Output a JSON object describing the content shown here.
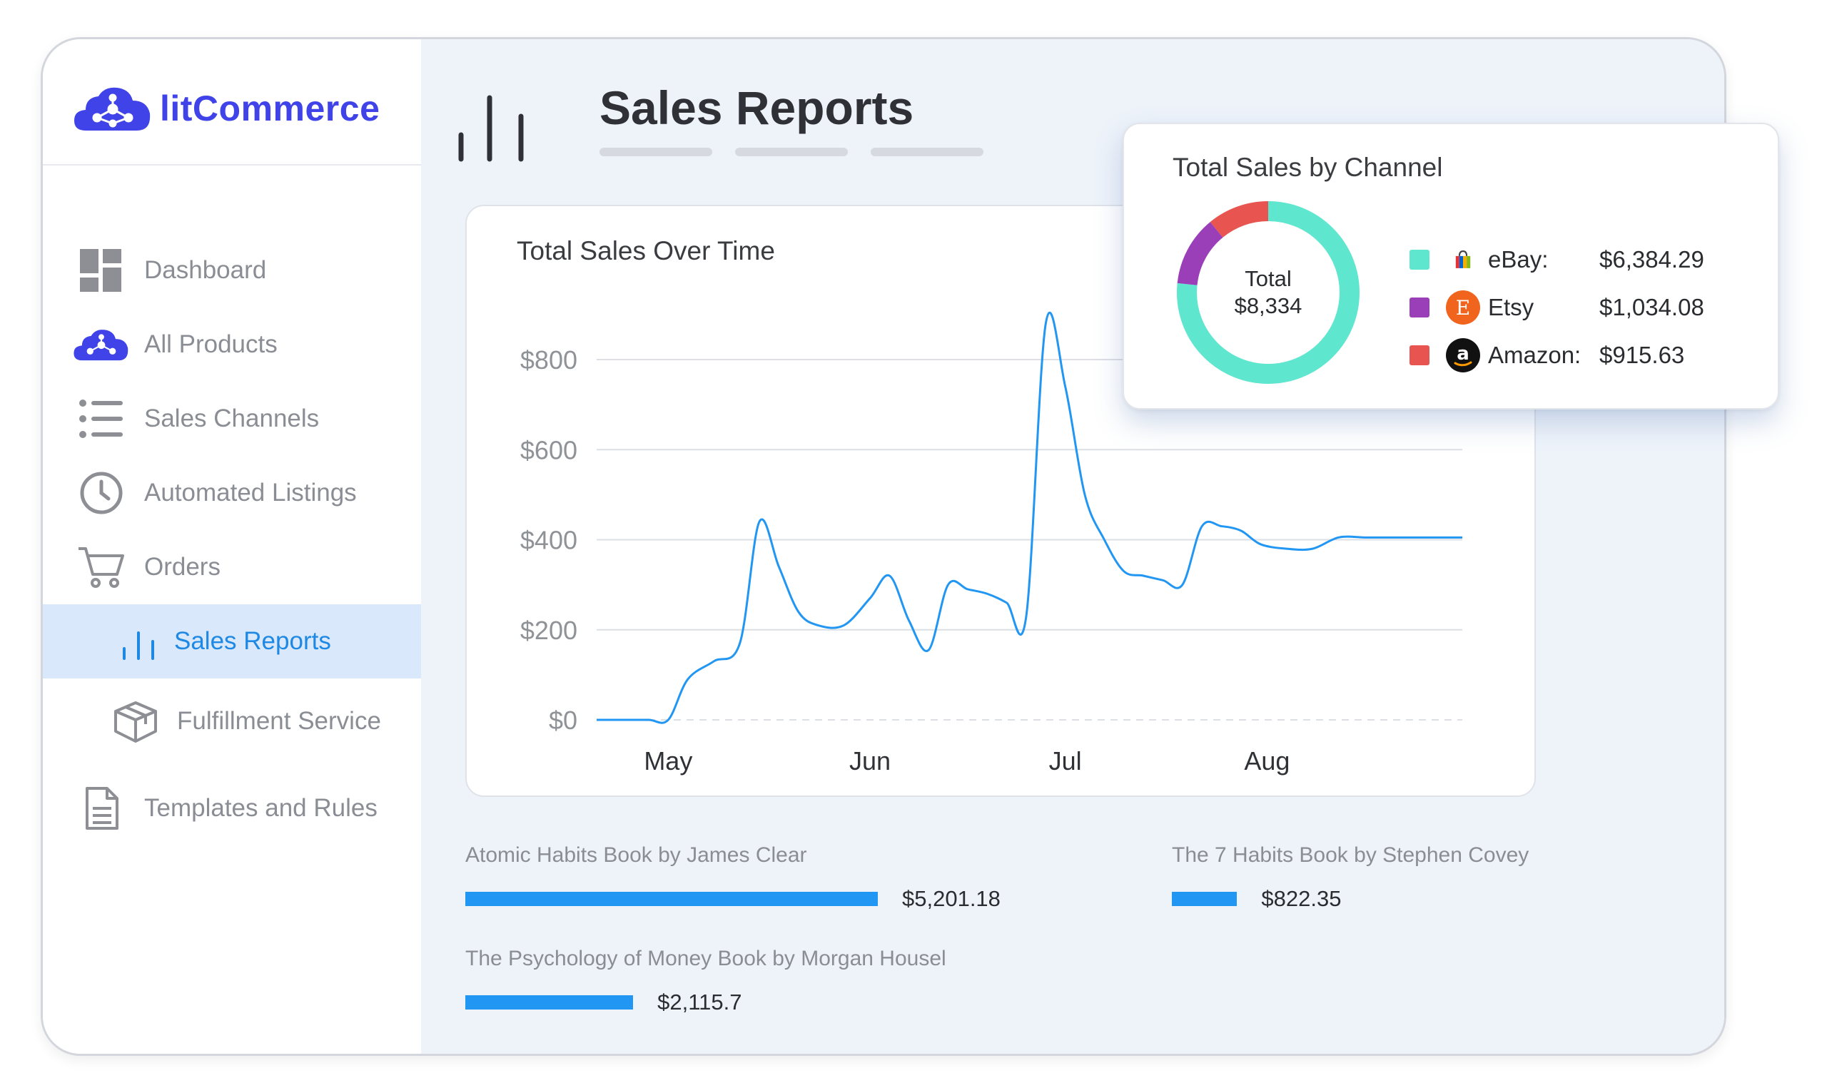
{
  "brand": {
    "name": "litCommerce",
    "logo_icon": "cloud-network-icon"
  },
  "sidebar": {
    "items": [
      {
        "label": "Dashboard",
        "icon": "dashboard-grid-icon"
      },
      {
        "label": "All Products",
        "icon": "cloud-network-icon"
      },
      {
        "label": "Sales Channels",
        "icon": "list-icon"
      },
      {
        "label": "Automated Listings",
        "icon": "clock-icon"
      },
      {
        "label": "Orders",
        "icon": "cart-icon"
      },
      {
        "label": "Sales Reports",
        "icon": "bar-chart-icon",
        "active": true
      },
      {
        "label": "Fulfillment Service",
        "icon": "box-icon"
      },
      {
        "label": "Templates and Rules",
        "icon": "document-icon"
      }
    ]
  },
  "page": {
    "title": "Sales Reports"
  },
  "sales_over_time": {
    "title": "Total Sales Over Time",
    "y_ticks": [
      "$800",
      "$600",
      "$400",
      "$200",
      "$0"
    ],
    "x_ticks": [
      "May",
      "Jun",
      "Jul",
      "Aug"
    ]
  },
  "chart_data": [
    {
      "type": "line",
      "title": "Total Sales Over Time",
      "xlabel": "",
      "ylabel": "",
      "ylim": [
        0,
        800
      ],
      "grid": true,
      "x_ticks": [
        "May",
        "Jun",
        "Jul",
        "Aug"
      ],
      "x": [
        "Apr 20",
        "Apr 24",
        "Apr 28",
        "May 1",
        "May 4",
        "May 8",
        "May 12",
        "May 15",
        "May 18",
        "May 21",
        "May 24",
        "May 28",
        "Jun 1",
        "Jun 4",
        "Jun 7",
        "Jun 10",
        "Jun 13",
        "Jun 16",
        "Jun 19",
        "Jun 22",
        "Jun 25",
        "Jun 28",
        "Jul 1",
        "Jul 4",
        "Jul 7",
        "Jul 10",
        "Jul 13",
        "Jul 16",
        "Jul 19",
        "Jul 22",
        "Jul 25",
        "Jul 28",
        "Jul 31",
        "Aug 4",
        "Aug 8",
        "Aug 12",
        "Aug 16",
        "Aug 19",
        "Aug 22",
        "Aug 25",
        "Aug 28",
        "Aug 31"
      ],
      "series": [
        {
          "values": [
            0,
            0,
            0,
            0,
            90,
            130,
            170,
            440,
            340,
            240,
            210,
            210,
            270,
            320,
            220,
            155,
            300,
            290,
            280,
            260,
            230,
            880,
            740,
            500,
            400,
            330,
            320,
            310,
            300,
            430,
            430,
            420,
            390,
            380,
            380,
            405,
            405,
            405,
            405,
            405,
            405,
            405
          ]
        }
      ]
    },
    {
      "type": "pie",
      "title": "Total Sales by Channel",
      "categories": [
        "eBay",
        "Etsy",
        "Amazon"
      ],
      "values": [
        6384.29,
        1034.08,
        915.63
      ],
      "total": 8334
    }
  ],
  "channels": {
    "title": "Total Sales by Channel",
    "total_label": "Total",
    "total_value": "$8,334",
    "items": [
      {
        "name": "eBay:",
        "value": "$6,384.29",
        "color": "#5ee6cf",
        "icon": "ebay-bag-icon",
        "amount": 6384.29
      },
      {
        "name": "Etsy",
        "value": "$1,034.08",
        "color": "#9b3fb9",
        "icon": "etsy-icon",
        "amount": 1034.08
      },
      {
        "name": "Amazon:",
        "value": "$915.63",
        "color": "#e8544f",
        "icon": "amazon-icon",
        "amount": 915.63
      }
    ]
  },
  "products": [
    {
      "name": "Atomic Habits Book by James Clear",
      "value": "$5,201.18",
      "amount": 5201.18
    },
    {
      "name": "The 7 Habits Book by Stephen Covey",
      "value": "$822.35",
      "amount": 822.35
    },
    {
      "name": "The Psychology of Money Book by Morgan Housel",
      "value": "$2,115.7",
      "amount": 2115.7
    }
  ],
  "colors": {
    "accent": "#1e88e5",
    "brand": "#3f43e8",
    "line": "#2196f3",
    "active_bg": "#d9e8fb"
  }
}
